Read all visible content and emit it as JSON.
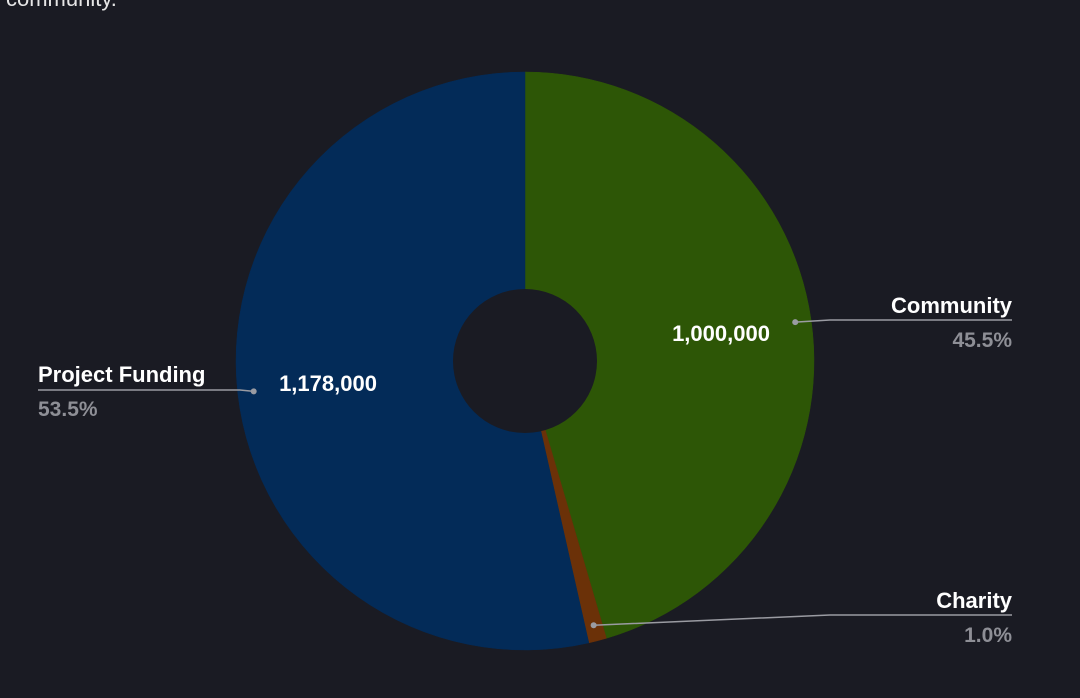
{
  "caption": "community.",
  "colors": {
    "background": "#1a1b23",
    "hole": "#1a1b23",
    "label_text": "#ffffff",
    "percent_text": "#8e8f96",
    "leader_line": "#9a9ba2"
  },
  "chart_data": {
    "type": "pie",
    "donut": true,
    "start_angle_deg": 0,
    "direction": "clockwise",
    "slices": [
      {
        "name": "Community",
        "value": 1000000,
        "value_label": "1,000,000",
        "percent": "45.5%",
        "color": "#2d5606"
      },
      {
        "name": "Charity",
        "value": 22000,
        "value_label": "",
        "percent": "1.0%",
        "color": "#6b3108"
      },
      {
        "name": "Project Funding",
        "value": 1178000,
        "value_label": "1,178,000",
        "percent": "53.5%",
        "color": "#032b58"
      }
    ]
  }
}
